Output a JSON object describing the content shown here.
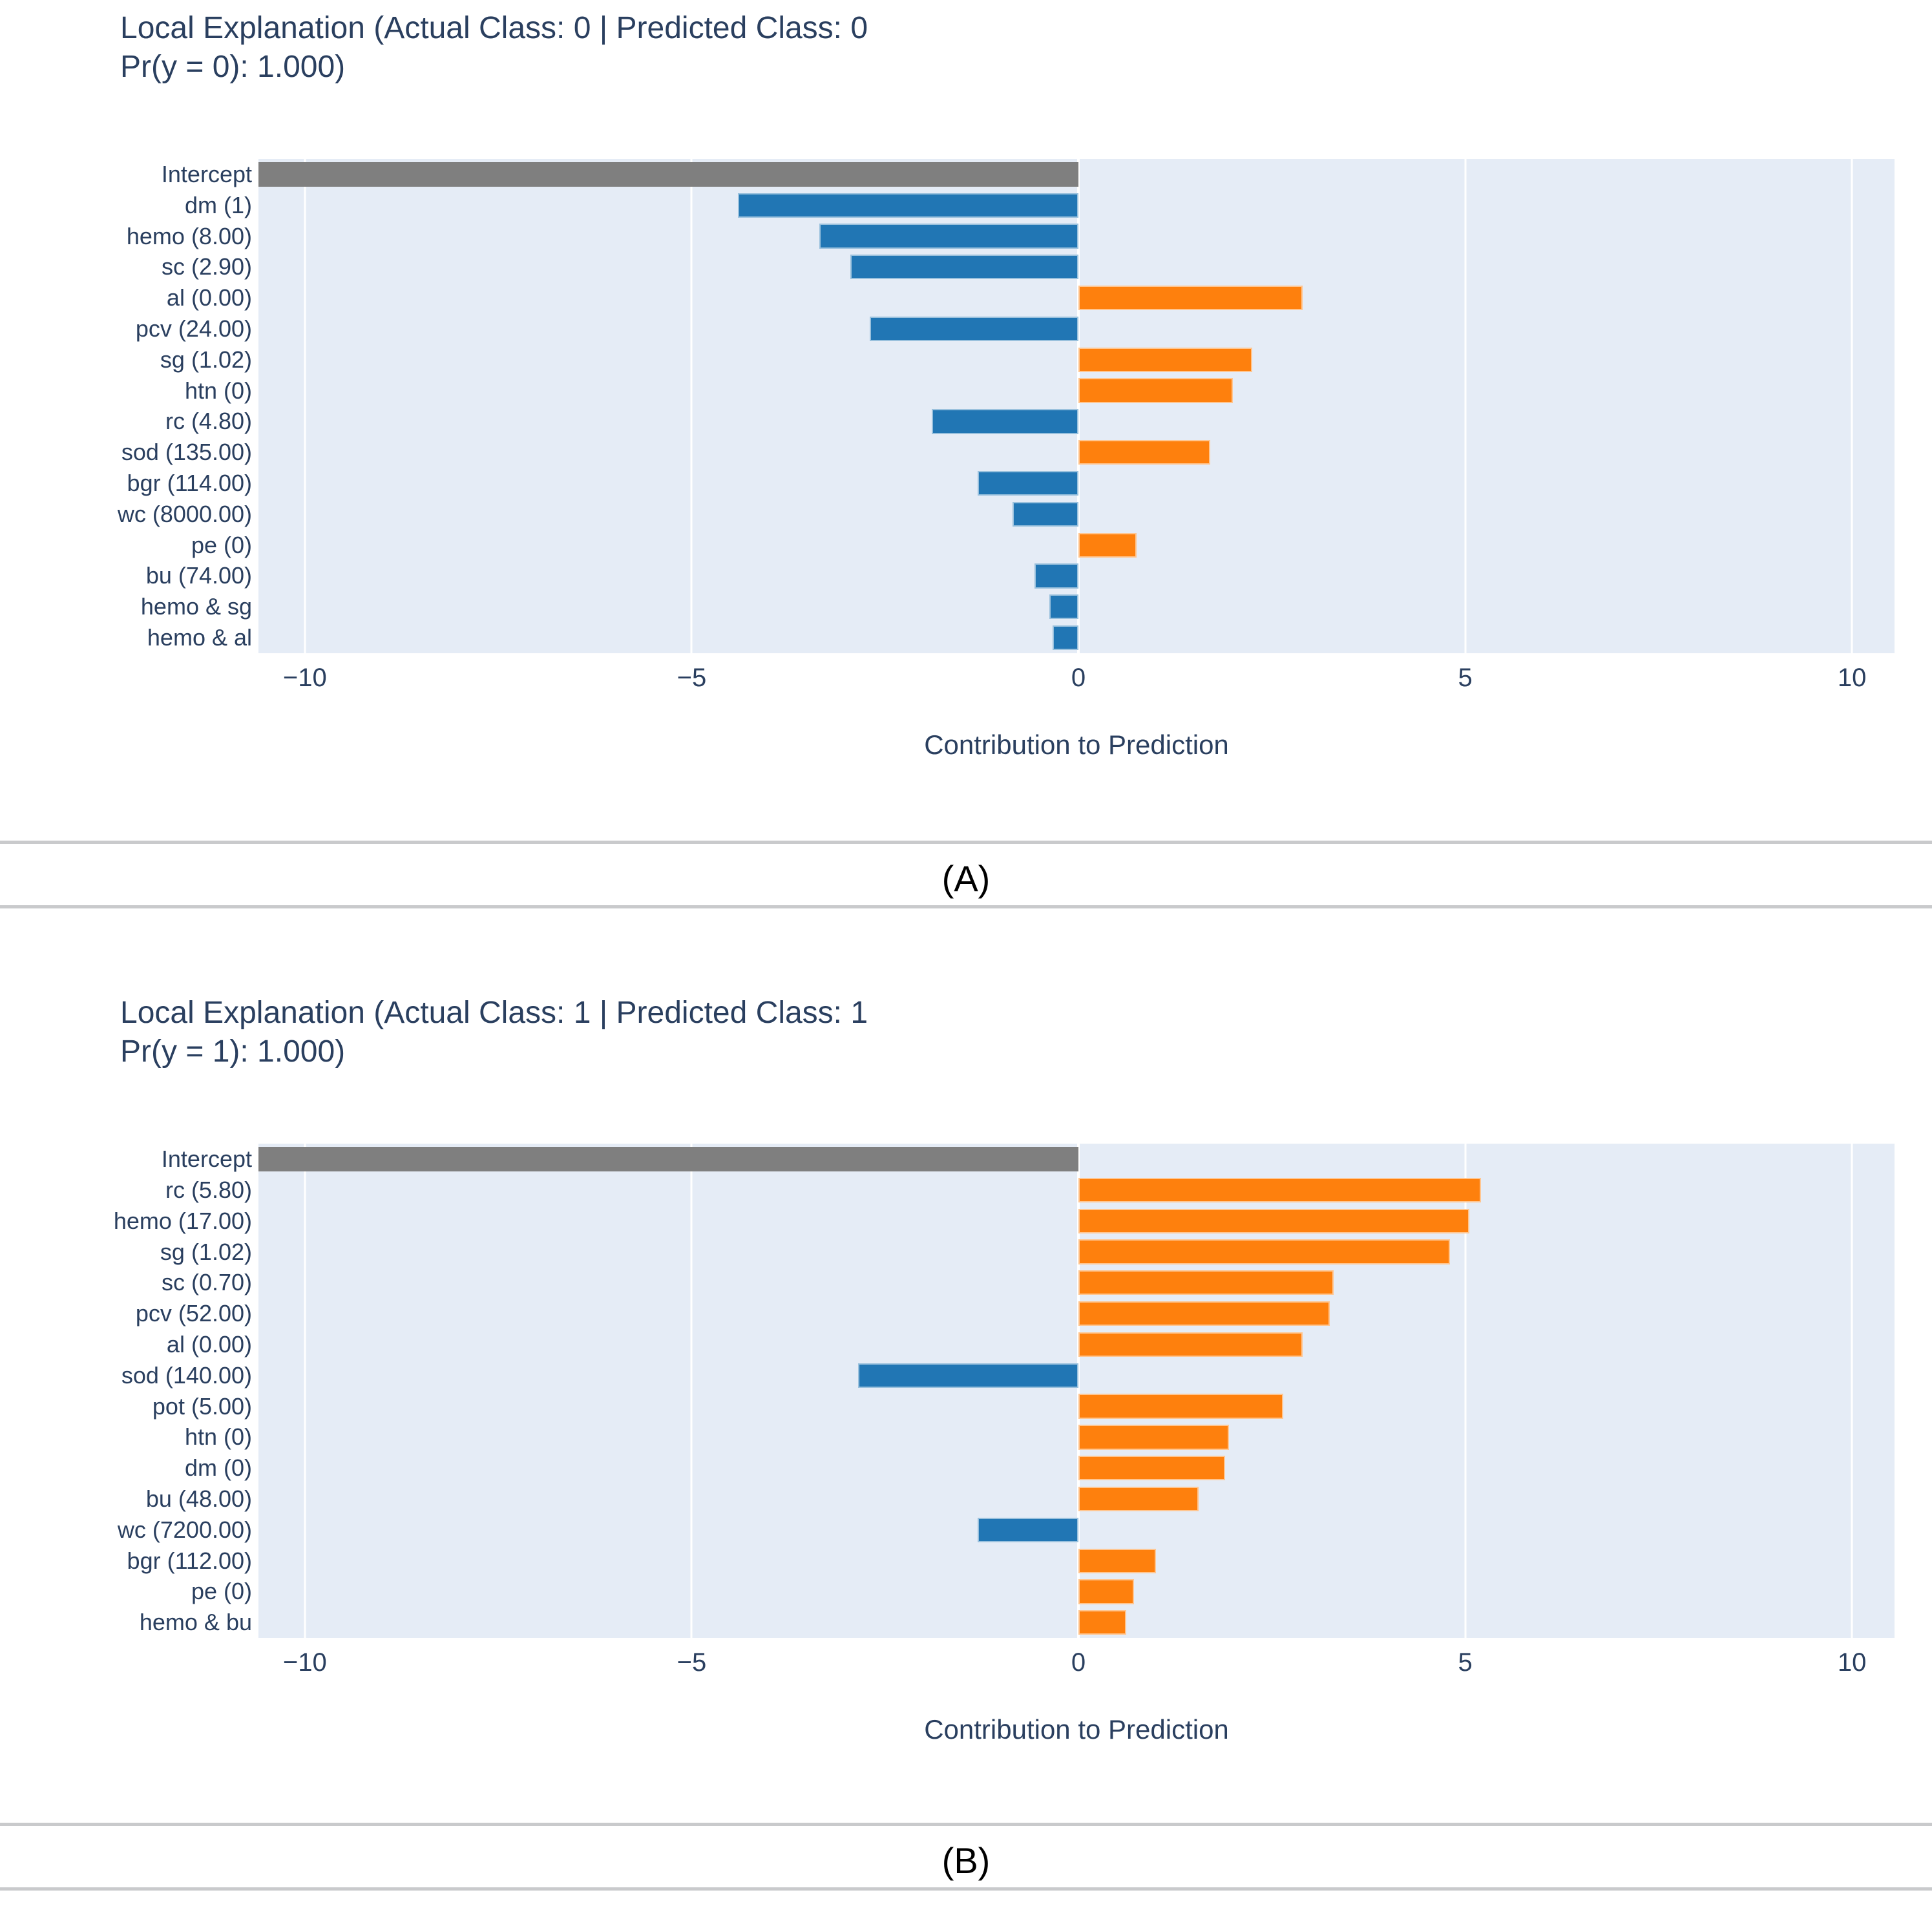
{
  "page": {
    "background": "#ffffff"
  },
  "style": {
    "plot_background": "#e5ecf6",
    "gridline_color": "#ffffff",
    "positive_color": "#fe800d",
    "negative_color": "#2176b4",
    "intercept_color": "#7f7f7f",
    "text_color": "#2a3f5f",
    "divider_color": "#c9cacc",
    "panel_label_color": "#000000"
  },
  "panel_labels": [
    "(A)",
    "(B)"
  ],
  "chart_data": [
    {
      "type": "bar",
      "orientation": "horizontal",
      "title_lines": [
        "Local Explanation (Actual Class: 0 | Predicted Class: 0",
        "Pr(y = 0): 1.000)"
      ],
      "xlabel": "Contribution to Prediction",
      "xlim": [
        -10.6,
        10.55
      ],
      "grid": true,
      "xticks": [
        {
          "value": -10,
          "label": "−10"
        },
        {
          "value": -5,
          "label": "−5"
        },
        {
          "value": 0,
          "label": "0"
        },
        {
          "value": 5,
          "label": "5"
        },
        {
          "value": 10,
          "label": "10"
        }
      ],
      "bars": [
        {
          "label": "Intercept",
          "value": -10.6,
          "role": "intercept",
          "clipped": true
        },
        {
          "label": "dm (1)",
          "value": -4.4
        },
        {
          "label": "hemo (8.00)",
          "value": -3.35
        },
        {
          "label": "sc (2.90)",
          "value": -2.95
        },
        {
          "label": "al (0.00)",
          "value": 2.9
        },
        {
          "label": "pcv (24.00)",
          "value": -2.7
        },
        {
          "label": "sg (1.02)",
          "value": 2.25
        },
        {
          "label": "htn (0)",
          "value": 2.0
        },
        {
          "label": "rc (4.80)",
          "value": -1.9
        },
        {
          "label": "sod (135.00)",
          "value": 1.7
        },
        {
          "label": "bgr (114.00)",
          "value": -1.3
        },
        {
          "label": "wc (8000.00)",
          "value": -0.85
        },
        {
          "label": "pe (0)",
          "value": 0.75
        },
        {
          "label": "bu (74.00)",
          "value": -0.57
        },
        {
          "label": "hemo & sg",
          "value": -0.38
        },
        {
          "label": "hemo & al",
          "value": -0.33
        }
      ]
    },
    {
      "type": "bar",
      "orientation": "horizontal",
      "title_lines": [
        "Local Explanation (Actual Class: 1 | Predicted Class: 1",
        "Pr(y = 1): 1.000)"
      ],
      "xlabel": "Contribution to Prediction",
      "xlim": [
        -10.6,
        10.55
      ],
      "grid": true,
      "xticks": [
        {
          "value": -10,
          "label": "−10"
        },
        {
          "value": -5,
          "label": "−5"
        },
        {
          "value": 0,
          "label": "0"
        },
        {
          "value": 5,
          "label": "5"
        },
        {
          "value": 10,
          "label": "10"
        }
      ],
      "bars": [
        {
          "label": "Intercept",
          "value": -10.6,
          "role": "intercept",
          "clipped": true
        },
        {
          "label": "rc (5.80)",
          "value": 5.2
        },
        {
          "label": "hemo (17.00)",
          "value": 5.05
        },
        {
          "label": "sg (1.02)",
          "value": 4.8
        },
        {
          "label": "sc (0.70)",
          "value": 3.3
        },
        {
          "label": "pcv (52.00)",
          "value": 3.25
        },
        {
          "label": "al (0.00)",
          "value": 2.9
        },
        {
          "label": "sod (140.00)",
          "value": -2.85
        },
        {
          "label": "pot (5.00)",
          "value": 2.65
        },
        {
          "label": "htn (0)",
          "value": 1.95
        },
        {
          "label": "dm (0)",
          "value": 1.9
        },
        {
          "label": "bu (48.00)",
          "value": 1.55
        },
        {
          "label": "wc (7200.00)",
          "value": -1.3
        },
        {
          "label": "bgr (112.00)",
          "value": 1.0
        },
        {
          "label": "pe (0)",
          "value": 0.72
        },
        {
          "label": "hemo & bu",
          "value": 0.62
        }
      ]
    }
  ]
}
